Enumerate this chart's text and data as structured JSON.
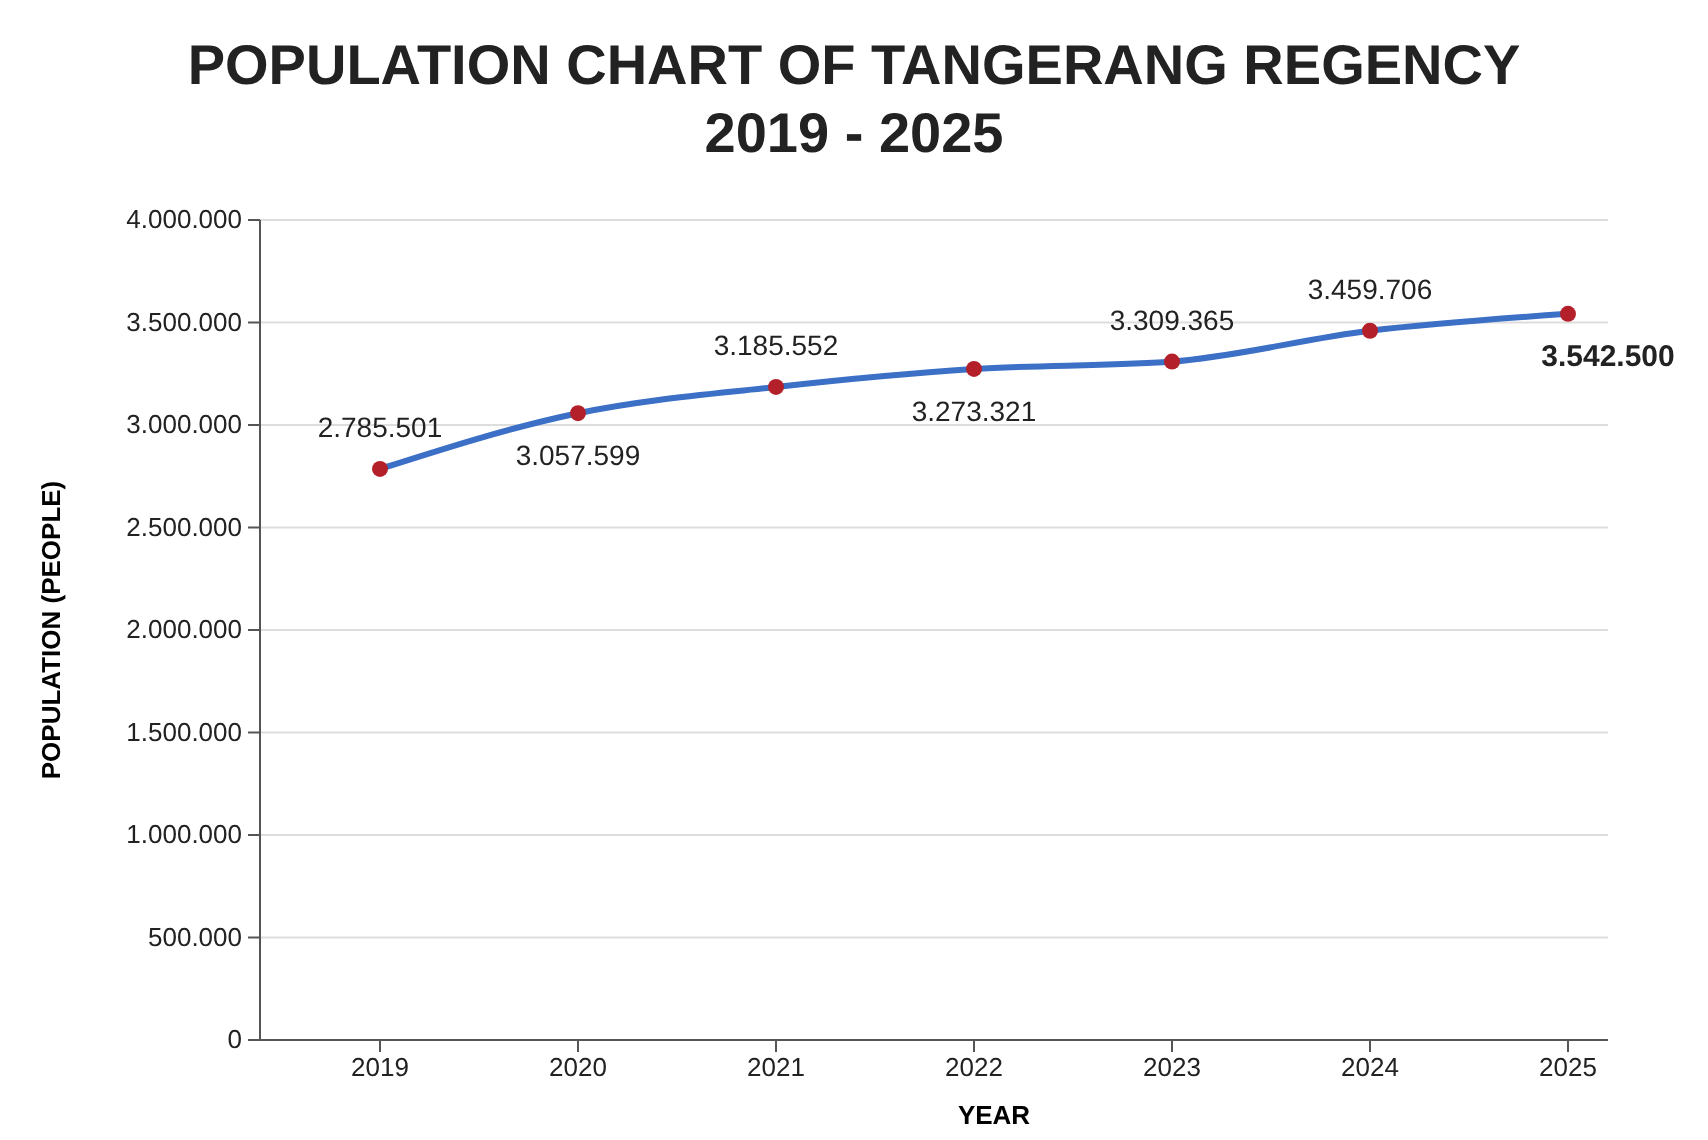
{
  "chart_data": {
    "type": "line",
    "title": "POPULATION CHART OF TANGERANG REGENCY\n2019 - 2025",
    "xlabel": "YEAR",
    "ylabel": "POPULATION (PEOPLE)",
    "categories": [
      "2019",
      "2020",
      "2021",
      "2022",
      "2023",
      "2024",
      "2025"
    ],
    "series": [
      {
        "color": "#3c6fc6",
        "values": [
          2785501,
          3057599,
          3185552,
          3273321,
          3309365,
          3459706,
          3542500
        ],
        "value_labels": [
          "2.785.501",
          "3.057.599",
          "3.185.552",
          "3.273.321",
          "3.309.365",
          "3.459.706",
          "3.542.500"
        ]
      }
    ],
    "ylim": [
      0,
      4000000
    ],
    "yticks": [
      {
        "value": 0,
        "label": "0"
      },
      {
        "value": 500000,
        "label": "500.000"
      },
      {
        "value": 1000000,
        "label": "1.000.000"
      },
      {
        "value": 1500000,
        "label": "1.500.000"
      },
      {
        "value": 2000000,
        "label": "2.000.000"
      },
      {
        "value": 2500000,
        "label": "2.500.000"
      },
      {
        "value": 3000000,
        "label": "3.000.000"
      },
      {
        "value": 3500000,
        "label": "3.500.000"
      },
      {
        "value": 4000000,
        "label": "4.000.000"
      }
    ],
    "grid": "y",
    "marker": "circle",
    "line_style": "solid"
  }
}
